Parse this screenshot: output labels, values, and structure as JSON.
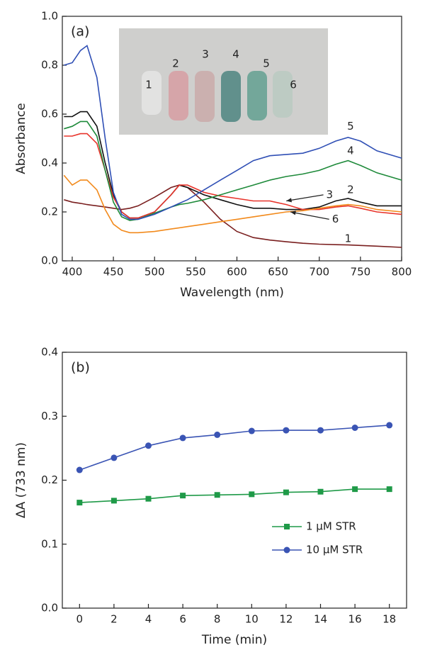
{
  "chart_data": [
    {
      "type": "line",
      "panel_label": "(a)",
      "xlabel": "Wavelength (nm)",
      "ylabel": "Absorbance",
      "x": [
        390,
        400,
        410,
        418,
        430,
        440,
        450,
        460,
        470,
        480,
        500,
        520,
        530,
        540,
        560,
        580,
        600,
        620,
        640,
        660,
        680,
        700,
        720,
        735,
        750,
        770,
        800
      ],
      "series": [
        {
          "name": "1",
          "color": "#7a1f1f",
          "values": [
            0.25,
            0.24,
            0.235,
            0.23,
            0.225,
            0.22,
            0.215,
            0.21,
            0.215,
            0.225,
            0.26,
            0.3,
            0.31,
            0.3,
            0.24,
            0.17,
            0.12,
            0.095,
            0.085,
            0.078,
            0.072,
            0.068,
            0.066,
            0.065,
            0.063,
            0.06,
            0.055
          ]
        },
        {
          "name": "2",
          "color": "#111111",
          "values": [
            0.59,
            0.59,
            0.61,
            0.61,
            0.55,
            0.4,
            0.27,
            0.2,
            0.175,
            0.175,
            0.2,
            0.27,
            0.31,
            0.3,
            0.27,
            0.25,
            0.23,
            0.215,
            0.215,
            0.21,
            0.21,
            0.22,
            0.245,
            0.255,
            0.24,
            0.225,
            0.225
          ]
        },
        {
          "name": "3",
          "color": "#e8332a",
          "values": [
            0.51,
            0.51,
            0.52,
            0.52,
            0.48,
            0.37,
            0.26,
            0.2,
            0.175,
            0.175,
            0.2,
            0.27,
            0.31,
            0.31,
            0.28,
            0.265,
            0.255,
            0.245,
            0.245,
            0.23,
            0.21,
            0.21,
            0.22,
            0.225,
            0.215,
            0.2,
            0.19
          ]
        },
        {
          "name": "4",
          "color": "#1e8a3a",
          "values": [
            0.54,
            0.55,
            0.57,
            0.57,
            0.51,
            0.37,
            0.24,
            0.18,
            0.165,
            0.17,
            0.195,
            0.22,
            0.23,
            0.235,
            0.25,
            0.27,
            0.29,
            0.31,
            0.33,
            0.345,
            0.355,
            0.37,
            0.395,
            0.41,
            0.39,
            0.36,
            0.33
          ]
        },
        {
          "name": "5",
          "color": "#2f4fb5",
          "values": [
            0.8,
            0.81,
            0.86,
            0.88,
            0.75,
            0.5,
            0.28,
            0.19,
            0.17,
            0.17,
            0.19,
            0.22,
            0.235,
            0.25,
            0.29,
            0.33,
            0.37,
            0.41,
            0.43,
            0.435,
            0.44,
            0.46,
            0.49,
            0.505,
            0.49,
            0.45,
            0.42
          ]
        },
        {
          "name": "6",
          "color": "#f28a1c",
          "values": [
            0.35,
            0.31,
            0.33,
            0.33,
            0.29,
            0.21,
            0.15,
            0.125,
            0.115,
            0.115,
            0.12,
            0.13,
            0.135,
            0.14,
            0.15,
            0.16,
            0.17,
            0.18,
            0.19,
            0.2,
            0.205,
            0.215,
            0.225,
            0.23,
            0.225,
            0.21,
            0.2
          ]
        }
      ],
      "xlim": [
        388,
        800
      ],
      "xticks": [
        400,
        450,
        500,
        550,
        600,
        650,
        700,
        750,
        800
      ],
      "ylim": [
        0,
        1.0
      ],
      "yticks": [
        {
          "value": 0,
          "label": "0.0"
        },
        0.2,
        0.4,
        0.6,
        0.8,
        {
          "value": 1.0,
          "label": "1.0"
        }
      ]
    },
    {
      "type": "line",
      "panel_label": "(b)",
      "xlabel": "Time (min)",
      "ylabel": "ΔA (733 nm)",
      "legend": "lower right",
      "x": [
        0,
        2,
        4,
        6,
        8,
        10,
        12,
        14,
        16,
        18
      ],
      "series": [
        {
          "name": "1 μM STR",
          "color": "#1f9a48",
          "marker": "square",
          "values": [
            0.165,
            0.168,
            0.171,
            0.176,
            0.177,
            0.178,
            0.181,
            0.182,
            0.186,
            0.186
          ]
        },
        {
          "name": "10 μM STR",
          "color": "#3a54b4",
          "marker": "circle",
          "values": [
            0.216,
            0.235,
            0.254,
            0.266,
            0.271,
            0.277,
            0.278,
            0.278,
            0.282,
            0.286
          ]
        }
      ],
      "xlim": [
        -1,
        19
      ],
      "xticks": [
        0,
        2,
        4,
        6,
        8,
        10,
        12,
        14,
        16,
        18
      ],
      "ylim": [
        0,
        0.4
      ],
      "yticks": [
        {
          "value": 0,
          "label": "0.0"
        },
        0.1,
        0.2,
        0.3,
        0.4
      ]
    }
  ]
}
